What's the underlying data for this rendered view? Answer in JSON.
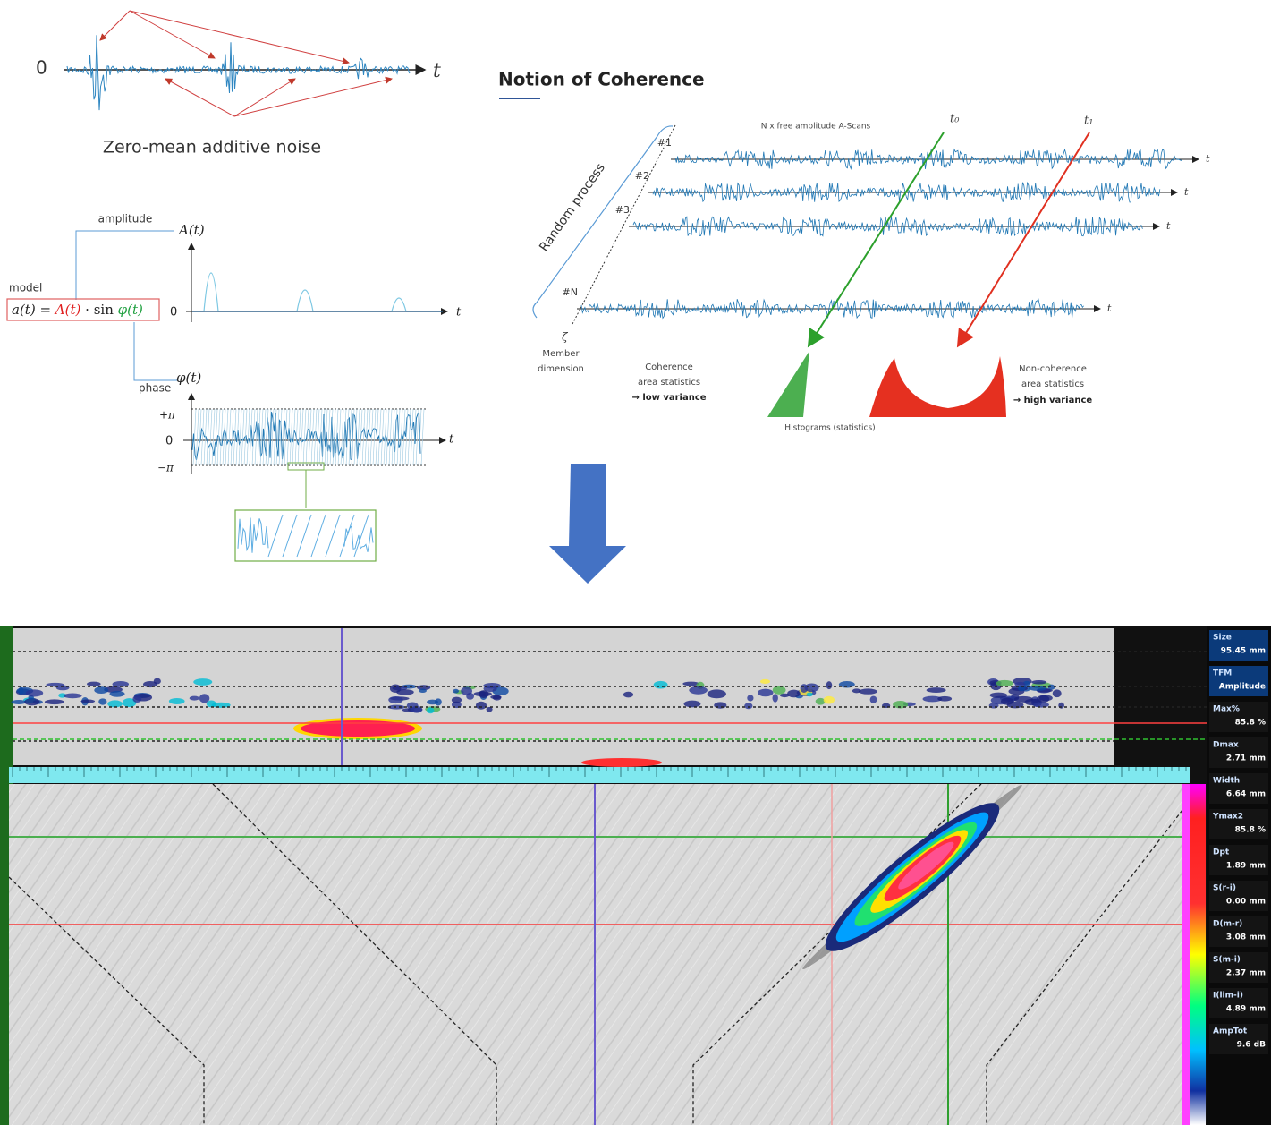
{
  "top_left": {
    "origin": "0",
    "t_axis": "t",
    "noise_label": "Zero-mean additive noise"
  },
  "model": {
    "amplitude_label": "amplitude",
    "A_axis": "A(t)",
    "model_label": "model",
    "formula": {
      "lhs": "a(t) =",
      "A": "A(t)",
      "sin": "· sin",
      "phi": "φ(t)"
    },
    "zero": "0",
    "t": "t",
    "phase_label": "phase",
    "phi_axis": "φ(t)",
    "plus_pi": "+π",
    "zero_phase": "0",
    "minus_pi": "−π",
    "t_phase": "t"
  },
  "coherence": {
    "title": "Notion of Coherence",
    "scans_label": "N x free amplitude A-Scans",
    "t0": "t₀",
    "t1": "t₁",
    "rows": [
      {
        "label": "#1",
        "t": "t"
      },
      {
        "label": "#2",
        "t": "t"
      },
      {
        "label": "#3",
        "t": "t"
      },
      {
        "label": "#N",
        "t": "t"
      }
    ],
    "random_process": "Random process",
    "zeta": "ζ",
    "member_dimension": [
      "Member",
      "dimension"
    ],
    "coherence_stats": [
      "Coherence",
      "area statistics",
      "→ low variance"
    ],
    "noncoherence_stats": [
      "Non-coherence",
      "area statistics",
      "→ high variance"
    ],
    "histograms": "Histograms (statistics)"
  },
  "scan_panel": {
    "readouts": [
      {
        "label": "Size",
        "value": "95.45 mm"
      },
      {
        "label": "TFM",
        "value": "Amplitude"
      },
      {
        "label": "Max%",
        "value": "85.8 %"
      },
      {
        "label": "Dmax",
        "value": "2.71 mm"
      },
      {
        "label": "Width",
        "value": "6.64 mm"
      },
      {
        "label": "Ymax2",
        "value": "85.8 %"
      },
      {
        "label": "Dpt",
        "value": "1.89 mm"
      },
      {
        "label": "S(r-i)",
        "value": "0.00 mm"
      },
      {
        "label": "D(m-r)",
        "value": "3.08 mm"
      },
      {
        "label": "S(m-i)",
        "value": "2.37 mm"
      },
      {
        "label": "I(lim-i)",
        "value": "4.89 mm"
      },
      {
        "label": "AmpTot",
        "value": "9.6 dB"
      }
    ]
  }
}
